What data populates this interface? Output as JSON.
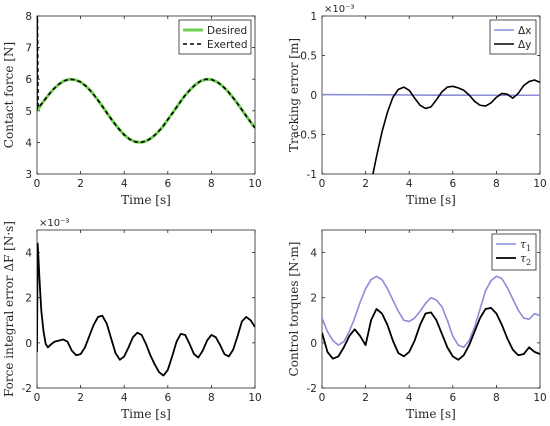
{
  "chart_data": [
    {
      "id": "contact-force",
      "type": "line",
      "xlabel": "Time [s]",
      "ylabel": "Contact force [N]",
      "xlim": [
        0,
        10
      ],
      "ylim": [
        3,
        8
      ],
      "xticks": [
        "0",
        "2",
        "4",
        "6",
        "8",
        "10"
      ],
      "yticks": [
        "3",
        "4",
        "5",
        "6",
        "7",
        "8"
      ],
      "exponent": "",
      "legend_position": "top-right",
      "series": [
        {
          "name": "Desired",
          "color": "#6fcf4f",
          "style": "solid",
          "width": 3,
          "x": [
            0,
            0.25,
            0.5,
            0.75,
            1,
            1.25,
            1.5,
            1.75,
            2,
            2.25,
            2.5,
            2.75,
            3,
            3.25,
            3.5,
            3.75,
            4,
            4.25,
            4.5,
            4.75,
            5,
            5.25,
            5.5,
            5.75,
            6,
            6.25,
            6.5,
            6.75,
            7,
            7.25,
            7.5,
            7.75,
            8,
            8.25,
            8.5,
            8.75,
            9,
            9.25,
            9.5,
            9.75,
            10
          ],
          "y": [
            5.0,
            5.25,
            5.48,
            5.68,
            5.84,
            5.95,
            6.0,
            5.98,
            5.91,
            5.78,
            5.6,
            5.38,
            5.14,
            4.89,
            4.65,
            4.43,
            4.24,
            4.1,
            4.02,
            4.0,
            4.04,
            4.14,
            4.29,
            4.48,
            4.72,
            4.96,
            5.21,
            5.45,
            5.65,
            5.82,
            5.94,
            6.0,
            5.99,
            5.92,
            5.79,
            5.62,
            5.41,
            5.18,
            4.93,
            4.69,
            4.46
          ]
        },
        {
          "name": "Exerted",
          "color": "#000000",
          "style": "dashed",
          "width": 1.6,
          "x": [
            0,
            0.01,
            0.02,
            0.05,
            0.25,
            0.5,
            0.75,
            1,
            1.25,
            1.5,
            1.75,
            2,
            2.25,
            2.5,
            2.75,
            3,
            3.25,
            3.5,
            3.75,
            4,
            4.25,
            4.5,
            4.75,
            5,
            5.25,
            5.5,
            5.75,
            6,
            6.25,
            6.5,
            6.75,
            7,
            7.25,
            7.5,
            7.75,
            8,
            8.25,
            8.5,
            8.75,
            9,
            9.25,
            9.5,
            9.75,
            10
          ],
          "y": [
            5.0,
            8.0,
            8.0,
            5.1,
            5.25,
            5.48,
            5.68,
            5.84,
            5.95,
            6.0,
            5.98,
            5.91,
            5.78,
            5.6,
            5.38,
            5.14,
            4.89,
            4.65,
            4.43,
            4.24,
            4.1,
            4.02,
            4.0,
            4.04,
            4.14,
            4.29,
            4.48,
            4.72,
            4.96,
            5.21,
            5.45,
            5.65,
            5.82,
            5.94,
            6.0,
            5.99,
            5.92,
            5.79,
            5.62,
            5.41,
            5.18,
            4.93,
            4.69,
            4.46
          ]
        }
      ]
    },
    {
      "id": "tracking-error",
      "type": "line",
      "xlabel": "Time [s]",
      "ylabel": "Tracking error [m]",
      "xlim": [
        0,
        10
      ],
      "ylim": [
        -1,
        1
      ],
      "xticks": [
        "0",
        "2",
        "4",
        "6",
        "8",
        "10"
      ],
      "yticks": [
        "-1",
        "-0.5",
        "0",
        "0.5",
        "1"
      ],
      "exponent": "×10⁻³",
      "legend_position": "top-right",
      "series": [
        {
          "name": "Δx",
          "color": "#8c8cd9",
          "style": "solid",
          "width": 1.6,
          "x": [
            0,
            1,
            2,
            3,
            4,
            5,
            6,
            7,
            8,
            9,
            10
          ],
          "y": [
            0.005,
            0.004,
            0.003,
            0.002,
            0.0,
            -0.002,
            -0.002,
            -0.003,
            -0.003,
            -0.003,
            -0.003
          ]
        },
        {
          "name": "Δy",
          "color": "#000000",
          "style": "solid",
          "width": 1.6,
          "x": [
            2.3,
            2.5,
            2.75,
            3,
            3.25,
            3.5,
            3.75,
            4,
            4.25,
            4.5,
            4.75,
            5,
            5.25,
            5.5,
            5.75,
            6,
            6.25,
            6.5,
            6.75,
            7,
            7.25,
            7.5,
            7.75,
            8,
            8.25,
            8.5,
            8.75,
            9,
            9.25,
            9.5,
            9.75,
            10
          ],
          "y": [
            -1.05,
            -0.78,
            -0.47,
            -0.22,
            -0.03,
            0.07,
            0.1,
            0.06,
            -0.04,
            -0.13,
            -0.17,
            -0.15,
            -0.06,
            0.04,
            0.1,
            0.11,
            0.09,
            0.06,
            0.0,
            -0.08,
            -0.13,
            -0.14,
            -0.1,
            -0.03,
            0.02,
            0.01,
            -0.04,
            0.02,
            0.12,
            0.17,
            0.19,
            0.16
          ]
        }
      ]
    },
    {
      "id": "force-integral-error",
      "type": "line",
      "xlabel": "Time [s]",
      "ylabel": "Force integral error ΔF [N·s]",
      "xlim": [
        0,
        10
      ],
      "ylim": [
        -2,
        5
      ],
      "xticks": [
        "0",
        "2",
        "4",
        "6",
        "8",
        "10"
      ],
      "yticks": [
        "-2",
        "0",
        "2",
        "4"
      ],
      "exponent": "×10⁻³",
      "legend_position": "none",
      "series": [
        {
          "name": "",
          "color": "#000000",
          "style": "solid",
          "width": 1.8,
          "x": [
            0,
            0.03,
            0.06,
            0.1,
            0.15,
            0.2,
            0.3,
            0.4,
            0.5,
            0.6,
            0.8,
            1.0,
            1.2,
            1.4,
            1.6,
            1.8,
            2.0,
            2.2,
            2.4,
            2.6,
            2.8,
            3.0,
            3.2,
            3.4,
            3.6,
            3.8,
            4.0,
            4.2,
            4.4,
            4.6,
            4.8,
            5.0,
            5.2,
            5.4,
            5.6,
            5.8,
            6.0,
            6.2,
            6.4,
            6.6,
            6.8,
            7.0,
            7.2,
            7.4,
            7.6,
            7.8,
            8.0,
            8.2,
            8.4,
            8.6,
            8.8,
            9.0,
            9.2,
            9.4,
            9.6,
            9.8,
            10.0
          ],
          "y": [
            -0.4,
            4.4,
            3.9,
            3.1,
            2.2,
            1.4,
            0.5,
            -0.05,
            -0.2,
            -0.1,
            0.05,
            0.1,
            0.15,
            0.05,
            -0.35,
            -0.55,
            -0.5,
            -0.2,
            0.3,
            0.8,
            1.15,
            1.2,
            0.85,
            0.2,
            -0.45,
            -0.75,
            -0.6,
            -0.2,
            0.25,
            0.45,
            0.35,
            -0.05,
            -0.55,
            -0.95,
            -1.3,
            -1.45,
            -1.2,
            -0.6,
            0.05,
            0.4,
            0.35,
            -0.05,
            -0.5,
            -0.65,
            -0.35,
            0.1,
            0.35,
            0.25,
            -0.1,
            -0.5,
            -0.6,
            -0.3,
            0.3,
            0.95,
            1.15,
            1.0,
            0.7
          ]
        }
      ]
    },
    {
      "id": "control-torques",
      "type": "line",
      "xlabel": "Time [s]",
      "ylabel": "Control torques [N·m]",
      "xlim": [
        0,
        10
      ],
      "ylim": [
        -2,
        5
      ],
      "xticks": [
        "0",
        "2",
        "4",
        "6",
        "8",
        "10"
      ],
      "yticks": [
        "-2",
        "0",
        "2",
        "4"
      ],
      "exponent": "",
      "legend_position": "top-right",
      "series": [
        {
          "name": "τ1",
          "color": "#8c8cd9",
          "style": "solid",
          "width": 1.6,
          "x": [
            0,
            0.25,
            0.5,
            0.75,
            1,
            1.25,
            1.5,
            1.75,
            2,
            2.25,
            2.5,
            2.75,
            3,
            3.25,
            3.5,
            3.75,
            4,
            4.25,
            4.5,
            4.75,
            5,
            5.25,
            5.5,
            5.75,
            6,
            6.25,
            6.5,
            6.75,
            7,
            7.25,
            7.5,
            7.75,
            8,
            8.25,
            8.5,
            8.75,
            9,
            9.25,
            9.5,
            9.75,
            10
          ],
          "y": [
            1.1,
            0.5,
            0.1,
            -0.1,
            0.05,
            0.5,
            1.1,
            1.8,
            2.4,
            2.8,
            2.95,
            2.8,
            2.4,
            1.9,
            1.4,
            1.0,
            0.95,
            1.1,
            1.4,
            1.75,
            2.0,
            1.9,
            1.6,
            1.0,
            0.3,
            -0.1,
            -0.2,
            0.1,
            0.7,
            1.5,
            2.3,
            2.75,
            2.95,
            2.85,
            2.45,
            1.95,
            1.45,
            1.1,
            1.05,
            1.3,
            1.2
          ]
        },
        {
          "name": "τ2",
          "color": "#000000",
          "style": "solid",
          "width": 1.8,
          "x": [
            0,
            0.25,
            0.5,
            0.75,
            1,
            1.25,
            1.5,
            1.75,
            2,
            2.25,
            2.5,
            2.75,
            3,
            3.25,
            3.5,
            3.75,
            4,
            4.25,
            4.5,
            4.75,
            5,
            5.25,
            5.5,
            5.75,
            6,
            6.25,
            6.5,
            6.75,
            7,
            7.25,
            7.5,
            7.75,
            8,
            8.25,
            8.5,
            8.75,
            9,
            9.25,
            9.5,
            9.75,
            10
          ],
          "y": [
            0.45,
            -0.4,
            -0.7,
            -0.6,
            -0.2,
            0.3,
            0.6,
            0.3,
            -0.1,
            1.0,
            1.5,
            1.3,
            0.8,
            0.1,
            -0.45,
            -0.6,
            -0.4,
            0.1,
            0.8,
            1.3,
            1.35,
            1.0,
            0.4,
            -0.2,
            -0.6,
            -0.75,
            -0.55,
            -0.1,
            0.5,
            1.1,
            1.5,
            1.55,
            1.3,
            0.8,
            0.2,
            -0.3,
            -0.55,
            -0.5,
            -0.2,
            -0.4,
            -0.5
          ]
        }
      ]
    }
  ]
}
